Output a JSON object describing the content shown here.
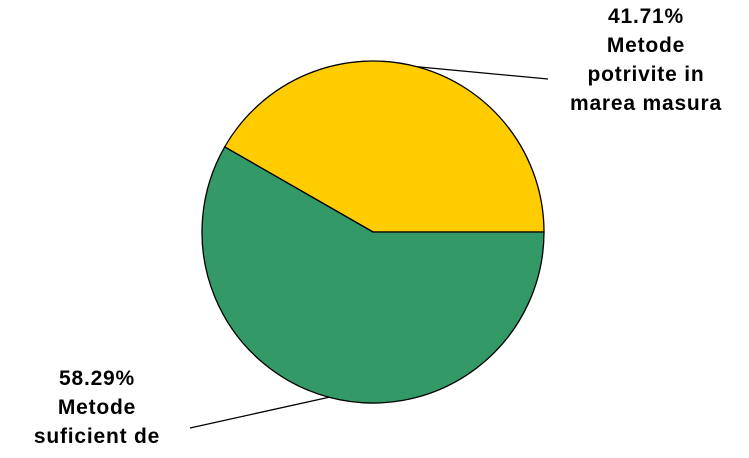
{
  "chart_data": {
    "type": "pie",
    "slices": [
      {
        "value": 41.71,
        "percent_label": "41.71%",
        "name_lines": [
          "Metode",
          "potrivite in",
          "marea masura"
        ],
        "color": "#FFCC00"
      },
      {
        "value": 58.29,
        "percent_label": "58.29%",
        "name_lines": [
          "Metode",
          "suficient de"
        ],
        "color": "#339966"
      }
    ],
    "start_angle_deg": 0,
    "direction": "counterclockwise",
    "border_color": "#000000",
    "legend": "none"
  }
}
